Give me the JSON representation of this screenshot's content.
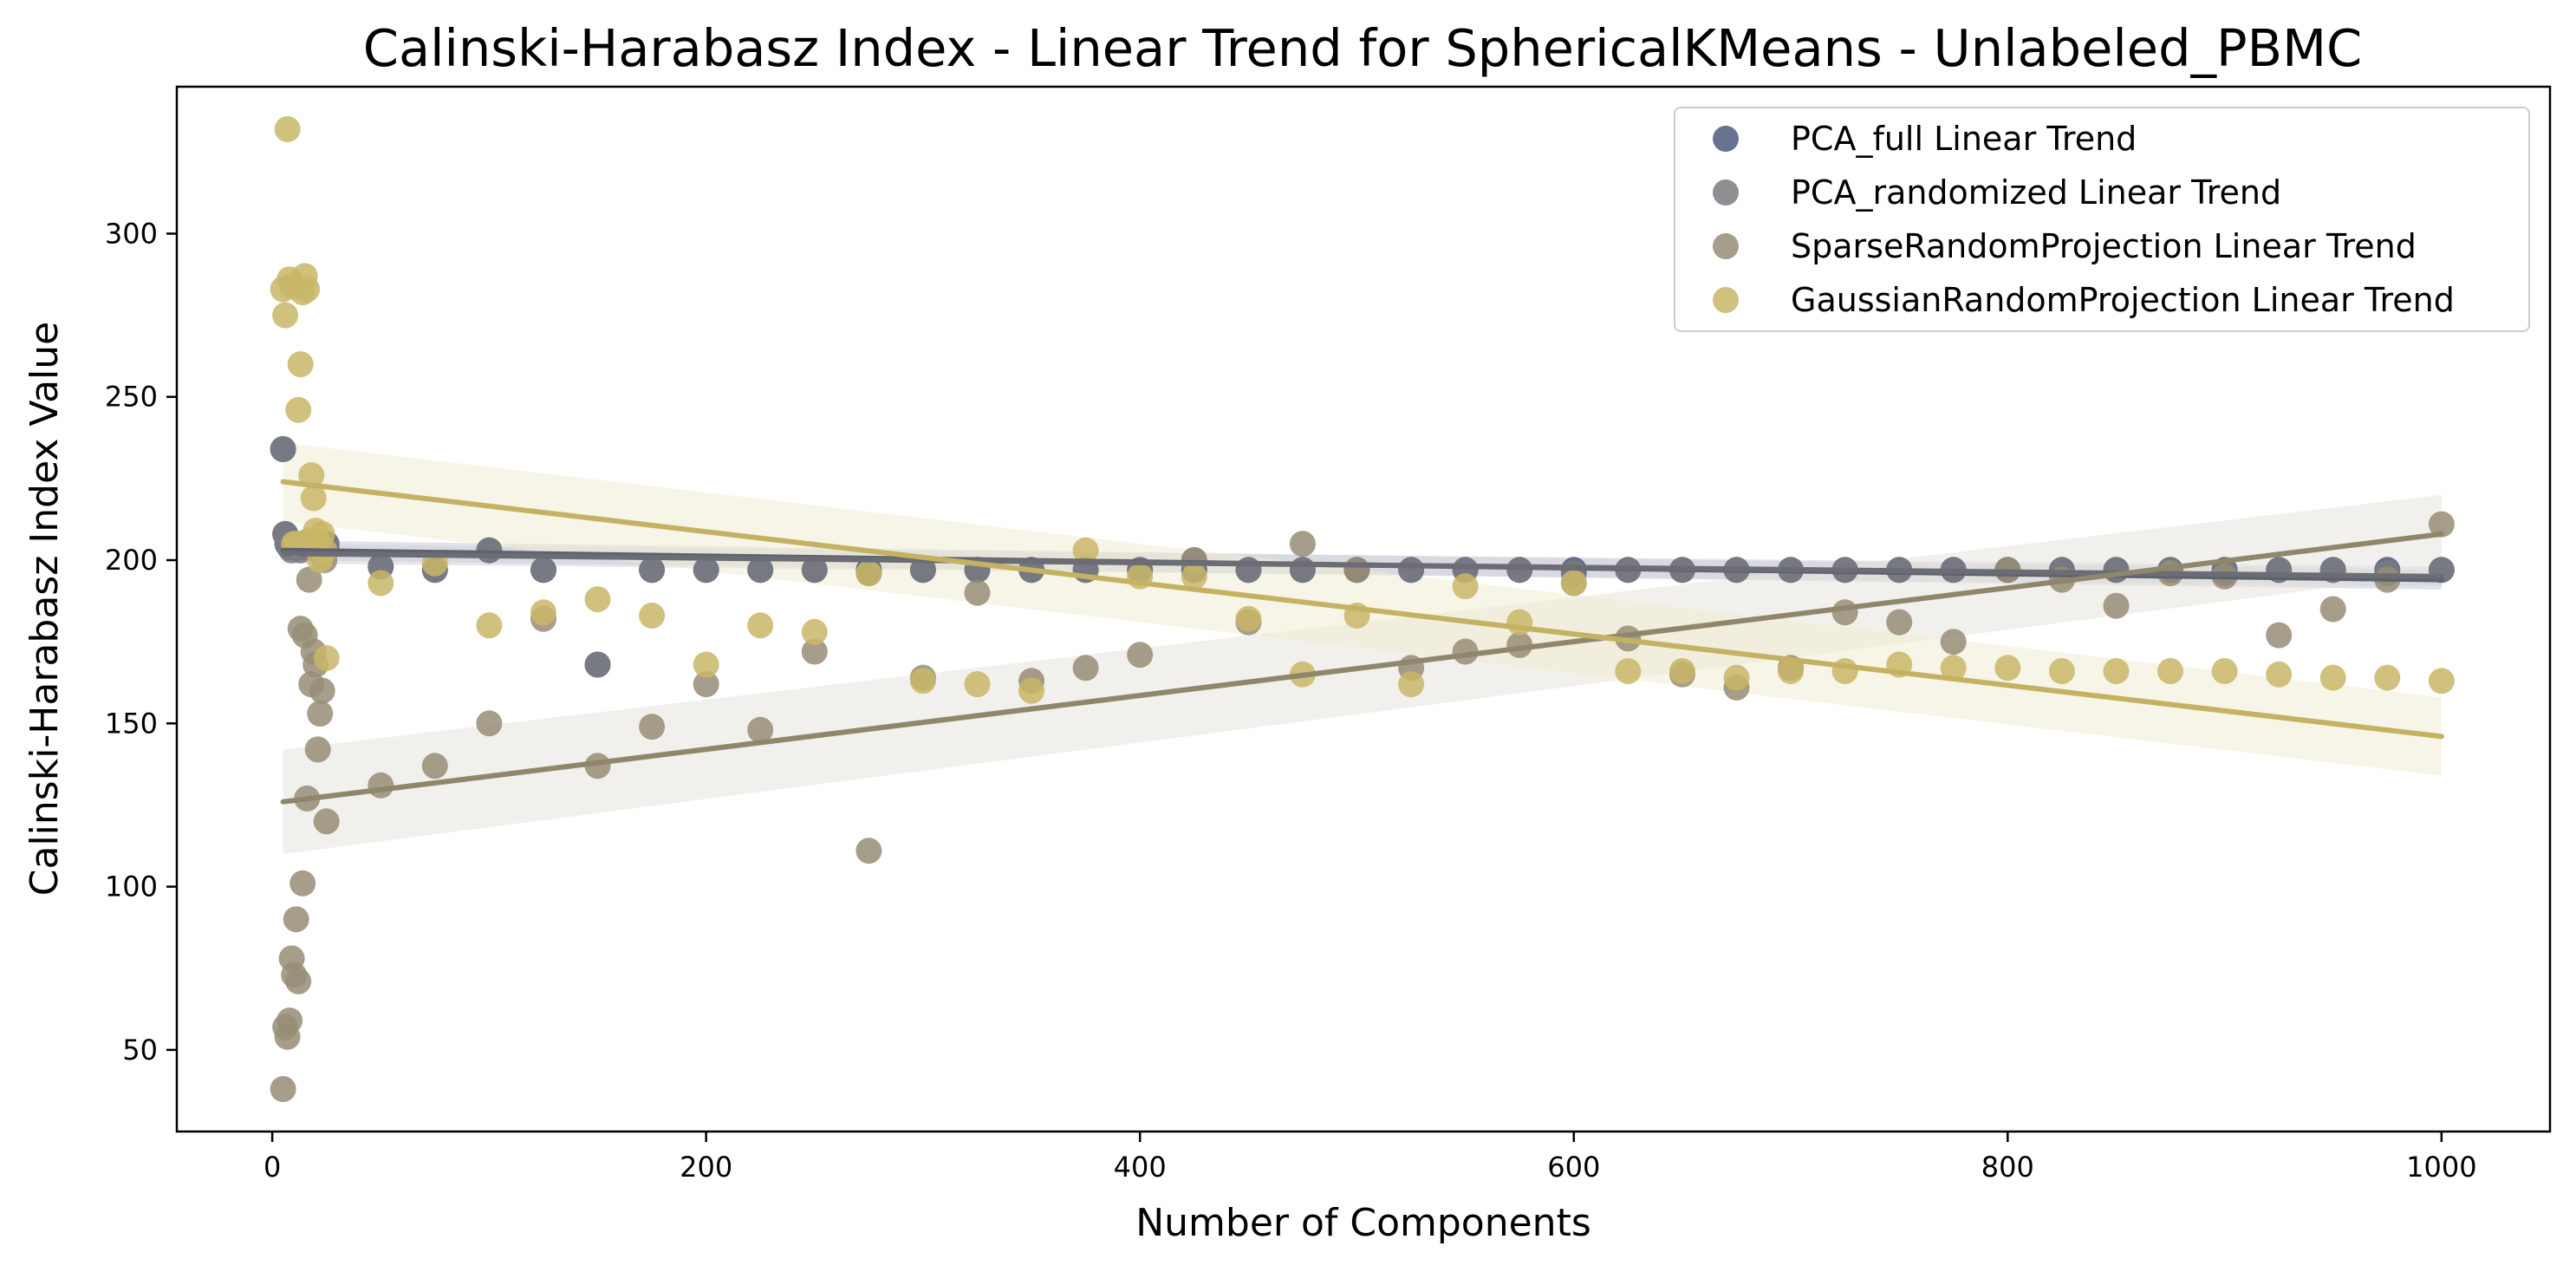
{
  "chart_data": {
    "type": "scatter",
    "title": "Calinski-Harabasz Index - Linear Trend for SphericalKMeans - Unlabeled_PBMC",
    "xlabel": "Number of Components",
    "ylabel": "Calinski-Harabasz Index Value",
    "xlim": [
      -44,
      1050
    ],
    "ylim": [
      25,
      345
    ],
    "xticks": [
      0,
      200,
      400,
      600,
      800,
      1000
    ],
    "yticks": [
      50,
      100,
      150,
      200,
      250,
      300
    ],
    "grid": false,
    "legend_position": "top-right",
    "series": [
      {
        "name": "PCA_full Linear Trend",
        "color": "#4e5a7e",
        "trend_color": "#5d6170",
        "band_color": "#c9cbd8",
        "trend": {
          "x": [
            5,
            1000
          ],
          "y": [
            203,
            194
          ]
        },
        "band_halfwidth": [
          3,
          3
        ],
        "x": [
          5,
          6,
          7,
          8,
          9,
          10,
          11,
          12,
          13,
          14,
          15,
          16,
          17,
          18,
          19,
          20,
          21,
          22,
          23,
          24,
          25,
          50,
          75,
          100,
          125,
          150,
          175,
          200,
          225,
          250,
          275,
          300,
          325,
          350,
          375,
          400,
          425,
          450,
          475,
          500,
          525,
          550,
          575,
          600,
          625,
          650,
          675,
          700,
          725,
          750,
          775,
          800,
          825,
          850,
          875,
          900,
          925,
          950,
          975,
          1000
        ],
        "y": [
          234,
          208,
          205,
          204,
          204,
          205,
          205,
          204,
          204,
          205,
          205,
          204,
          205,
          205,
          205,
          205,
          205,
          205,
          205,
          205,
          205,
          198,
          197,
          203,
          197,
          168,
          197,
          197,
          197,
          197,
          197,
          197,
          197,
          197,
          197,
          197,
          197,
          197,
          197,
          197,
          197,
          197,
          197,
          197,
          197,
          197,
          197,
          197,
          197,
          197,
          197,
          197,
          197,
          197,
          197,
          197,
          197,
          197,
          197,
          197
        ]
      },
      {
        "name": "PCA_randomized Linear Trend",
        "color": "#7a7a80",
        "trend_color": "#6c6d74",
        "band_color": "#d4d4d8",
        "trend": {
          "x": [
            5,
            1000
          ],
          "y": [
            202,
            195
          ]
        },
        "band_halfwidth": [
          3,
          3
        ],
        "x": [
          5,
          6,
          7,
          8,
          9,
          10,
          11,
          12,
          13,
          14,
          15,
          16,
          17,
          18,
          19,
          20,
          21,
          22,
          23,
          24,
          25,
          50,
          75,
          100,
          125,
          150,
          175,
          200,
          225,
          250,
          275,
          300,
          325,
          350,
          375,
          400,
          425,
          450,
          475,
          500,
          525,
          550,
          575,
          600,
          625,
          650,
          675,
          700,
          725,
          750,
          775,
          800,
          825,
          850,
          875,
          900,
          925,
          950,
          975,
          1000
        ],
        "y": [
          234,
          208,
          205,
          204,
          203,
          204,
          204,
          204,
          203,
          204,
          204,
          204,
          204,
          204,
          204,
          204,
          204,
          204,
          204,
          204,
          204,
          198,
          197,
          203,
          197,
          168,
          197,
          197,
          197,
          197,
          196,
          197,
          197,
          197,
          197,
          197,
          200,
          197,
          197,
          197,
          197,
          197,
          197,
          196,
          197,
          197,
          197,
          197,
          197,
          197,
          197,
          197,
          197,
          197,
          197,
          196,
          197,
          197,
          196,
          197
        ]
      },
      {
        "name": "SparseRandomProjection Linear Trend",
        "color": "#968d76",
        "trend_color": "#8f866c",
        "band_color": "#e6e4dd",
        "trend": {
          "x": [
            5,
            1000
          ],
          "y": [
            126,
            208
          ]
        },
        "band_halfwidth": [
          16,
          12
        ],
        "x": [
          5,
          6,
          7,
          8,
          9,
          10,
          11,
          12,
          13,
          14,
          15,
          16,
          17,
          18,
          19,
          20,
          21,
          22,
          23,
          24,
          25,
          50,
          75,
          100,
          125,
          150,
          175,
          200,
          225,
          250,
          275,
          300,
          325,
          350,
          375,
          400,
          425,
          450,
          475,
          500,
          525,
          550,
          575,
          600,
          625,
          650,
          675,
          700,
          725,
          750,
          775,
          800,
          825,
          850,
          875,
          900,
          925,
          950,
          975,
          1000
        ],
        "y": [
          38,
          57,
          54,
          59,
          78,
          73,
          90,
          71,
          179,
          101,
          177,
          127,
          194,
          162,
          172,
          168,
          142,
          153,
          160,
          200,
          120,
          131,
          137,
          150,
          182,
          137,
          149,
          162,
          148,
          172,
          111,
          164,
          190,
          163,
          167,
          171,
          200,
          181,
          205,
          197,
          167,
          172,
          174,
          193,
          176,
          165,
          161,
          167,
          184,
          181,
          175,
          197,
          194,
          186,
          196,
          195,
          177,
          185,
          194,
          211
        ]
      },
      {
        "name": "GaussianRandomProjection Linear Trend",
        "color": "#c9b667",
        "trend_color": "#c4b262",
        "band_color": "#f1ecd3",
        "trend": {
          "x": [
            5,
            1000
          ],
          "y": [
            224,
            146
          ]
        },
        "band_halfwidth": [
          12,
          12
        ],
        "x": [
          5,
          6,
          7,
          8,
          9,
          10,
          11,
          12,
          13,
          14,
          15,
          16,
          17,
          18,
          19,
          20,
          21,
          22,
          23,
          24,
          25,
          50,
          75,
          100,
          125,
          150,
          175,
          200,
          225,
          250,
          275,
          300,
          325,
          350,
          375,
          400,
          425,
          450,
          475,
          500,
          525,
          550,
          575,
          600,
          625,
          650,
          675,
          700,
          725,
          750,
          775,
          800,
          825,
          850,
          875,
          900,
          925,
          950,
          975,
          1000
        ],
        "y": [
          283,
          275,
          332,
          286,
          284,
          205,
          205,
          246,
          260,
          282,
          287,
          283,
          206,
          226,
          219,
          209,
          205,
          200,
          208,
          203,
          170,
          193,
          199,
          180,
          184,
          188,
          183,
          168,
          180,
          178,
          196,
          163,
          162,
          160,
          203,
          195,
          195,
          182,
          165,
          183,
          162,
          192,
          181,
          193,
          166,
          166,
          164,
          166,
          166,
          168,
          167,
          167,
          166,
          166,
          166,
          166,
          165,
          164,
          164,
          163
        ]
      }
    ]
  }
}
